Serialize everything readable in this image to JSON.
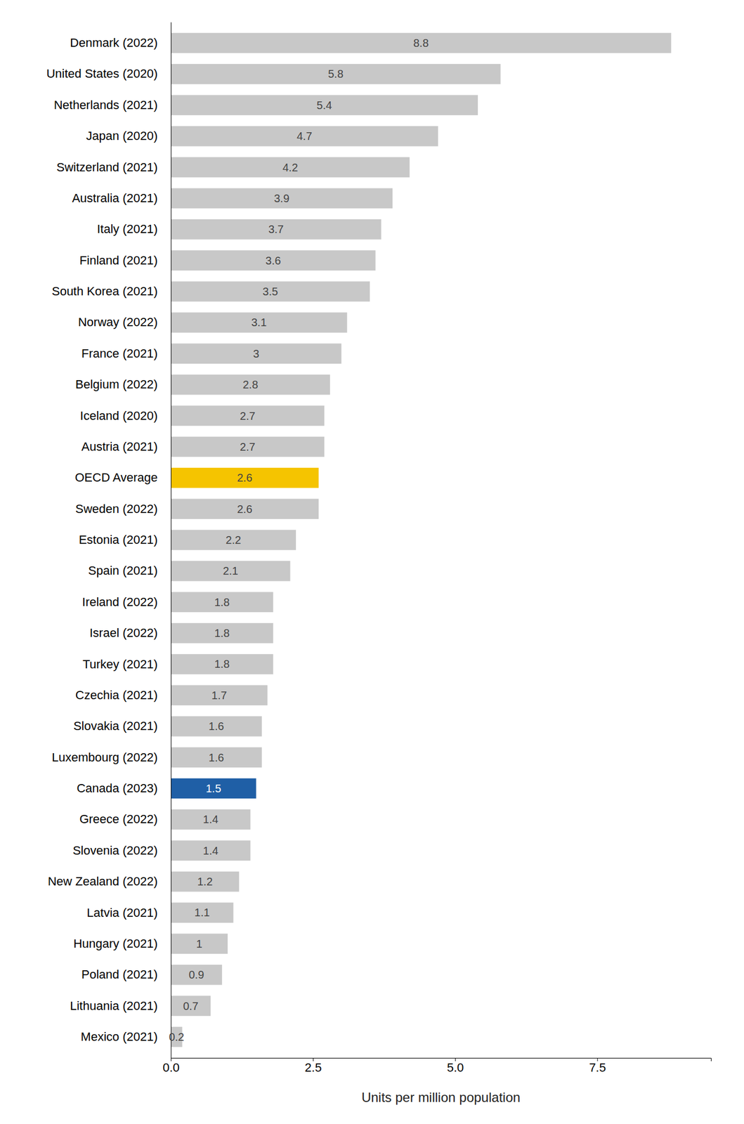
{
  "chart_data": {
    "type": "bar",
    "orientation": "horizontal",
    "categories": [
      "Denmark (2022)",
      "United States (2020)",
      "Netherlands (2021)",
      "Japan (2020)",
      "Switzerland (2021)",
      "Australia (2021)",
      "Italy (2021)",
      "Finland (2021)",
      "South Korea (2021)",
      "Norway (2022)",
      "France (2021)",
      "Belgium (2022)",
      "Iceland (2020)",
      "Austria (2021)",
      "OECD Average",
      "Sweden (2022)",
      "Estonia (2021)",
      "Spain (2021)",
      "Ireland (2022)",
      "Israel (2022)",
      "Turkey (2021)",
      "Czechia (2021)",
      "Slovakia (2021)",
      "Luxembourg (2022)",
      "Canada (2023)",
      "Greece (2022)",
      "Slovenia (2022)",
      "New Zealand (2022)",
      "Latvia (2021)",
      "Hungary (2021)",
      "Poland (2021)",
      "Lithuania (2021)",
      "Mexico (2021)"
    ],
    "values": [
      8.8,
      5.8,
      5.4,
      4.7,
      4.2,
      3.9,
      3.7,
      3.6,
      3.5,
      3.1,
      3.0,
      2.8,
      2.7,
      2.7,
      2.6,
      2.6,
      2.2,
      2.1,
      1.8,
      1.8,
      1.8,
      1.7,
      1.6,
      1.6,
      1.5,
      1.4,
      1.4,
      1.2,
      1.1,
      1.0,
      0.9,
      0.7,
      0.2
    ],
    "colors": [
      "#c8c8c8",
      "#c8c8c8",
      "#c8c8c8",
      "#c8c8c8",
      "#c8c8c8",
      "#c8c8c8",
      "#c8c8c8",
      "#c8c8c8",
      "#c8c8c8",
      "#c8c8c8",
      "#c8c8c8",
      "#c8c8c8",
      "#c8c8c8",
      "#c8c8c8",
      "#f5c400",
      "#c8c8c8",
      "#c8c8c8",
      "#c8c8c8",
      "#c8c8c8",
      "#c8c8c8",
      "#c8c8c8",
      "#c8c8c8",
      "#c8c8c8",
      "#c8c8c8",
      "#1f5fa6",
      "#c8c8c8",
      "#c8c8c8",
      "#c8c8c8",
      "#c8c8c8",
      "#c8c8c8",
      "#c8c8c8",
      "#c8c8c8",
      "#c8c8c8"
    ],
    "xlabel": "Units per million population",
    "xlim": [
      0,
      9.5
    ],
    "xticks": [
      {
        "value": 0,
        "label": "0.0"
      },
      2.5,
      {
        "value": 5,
        "label": "5.0"
      },
      7.5
    ],
    "grid": false,
    "data_labels": true
  }
}
